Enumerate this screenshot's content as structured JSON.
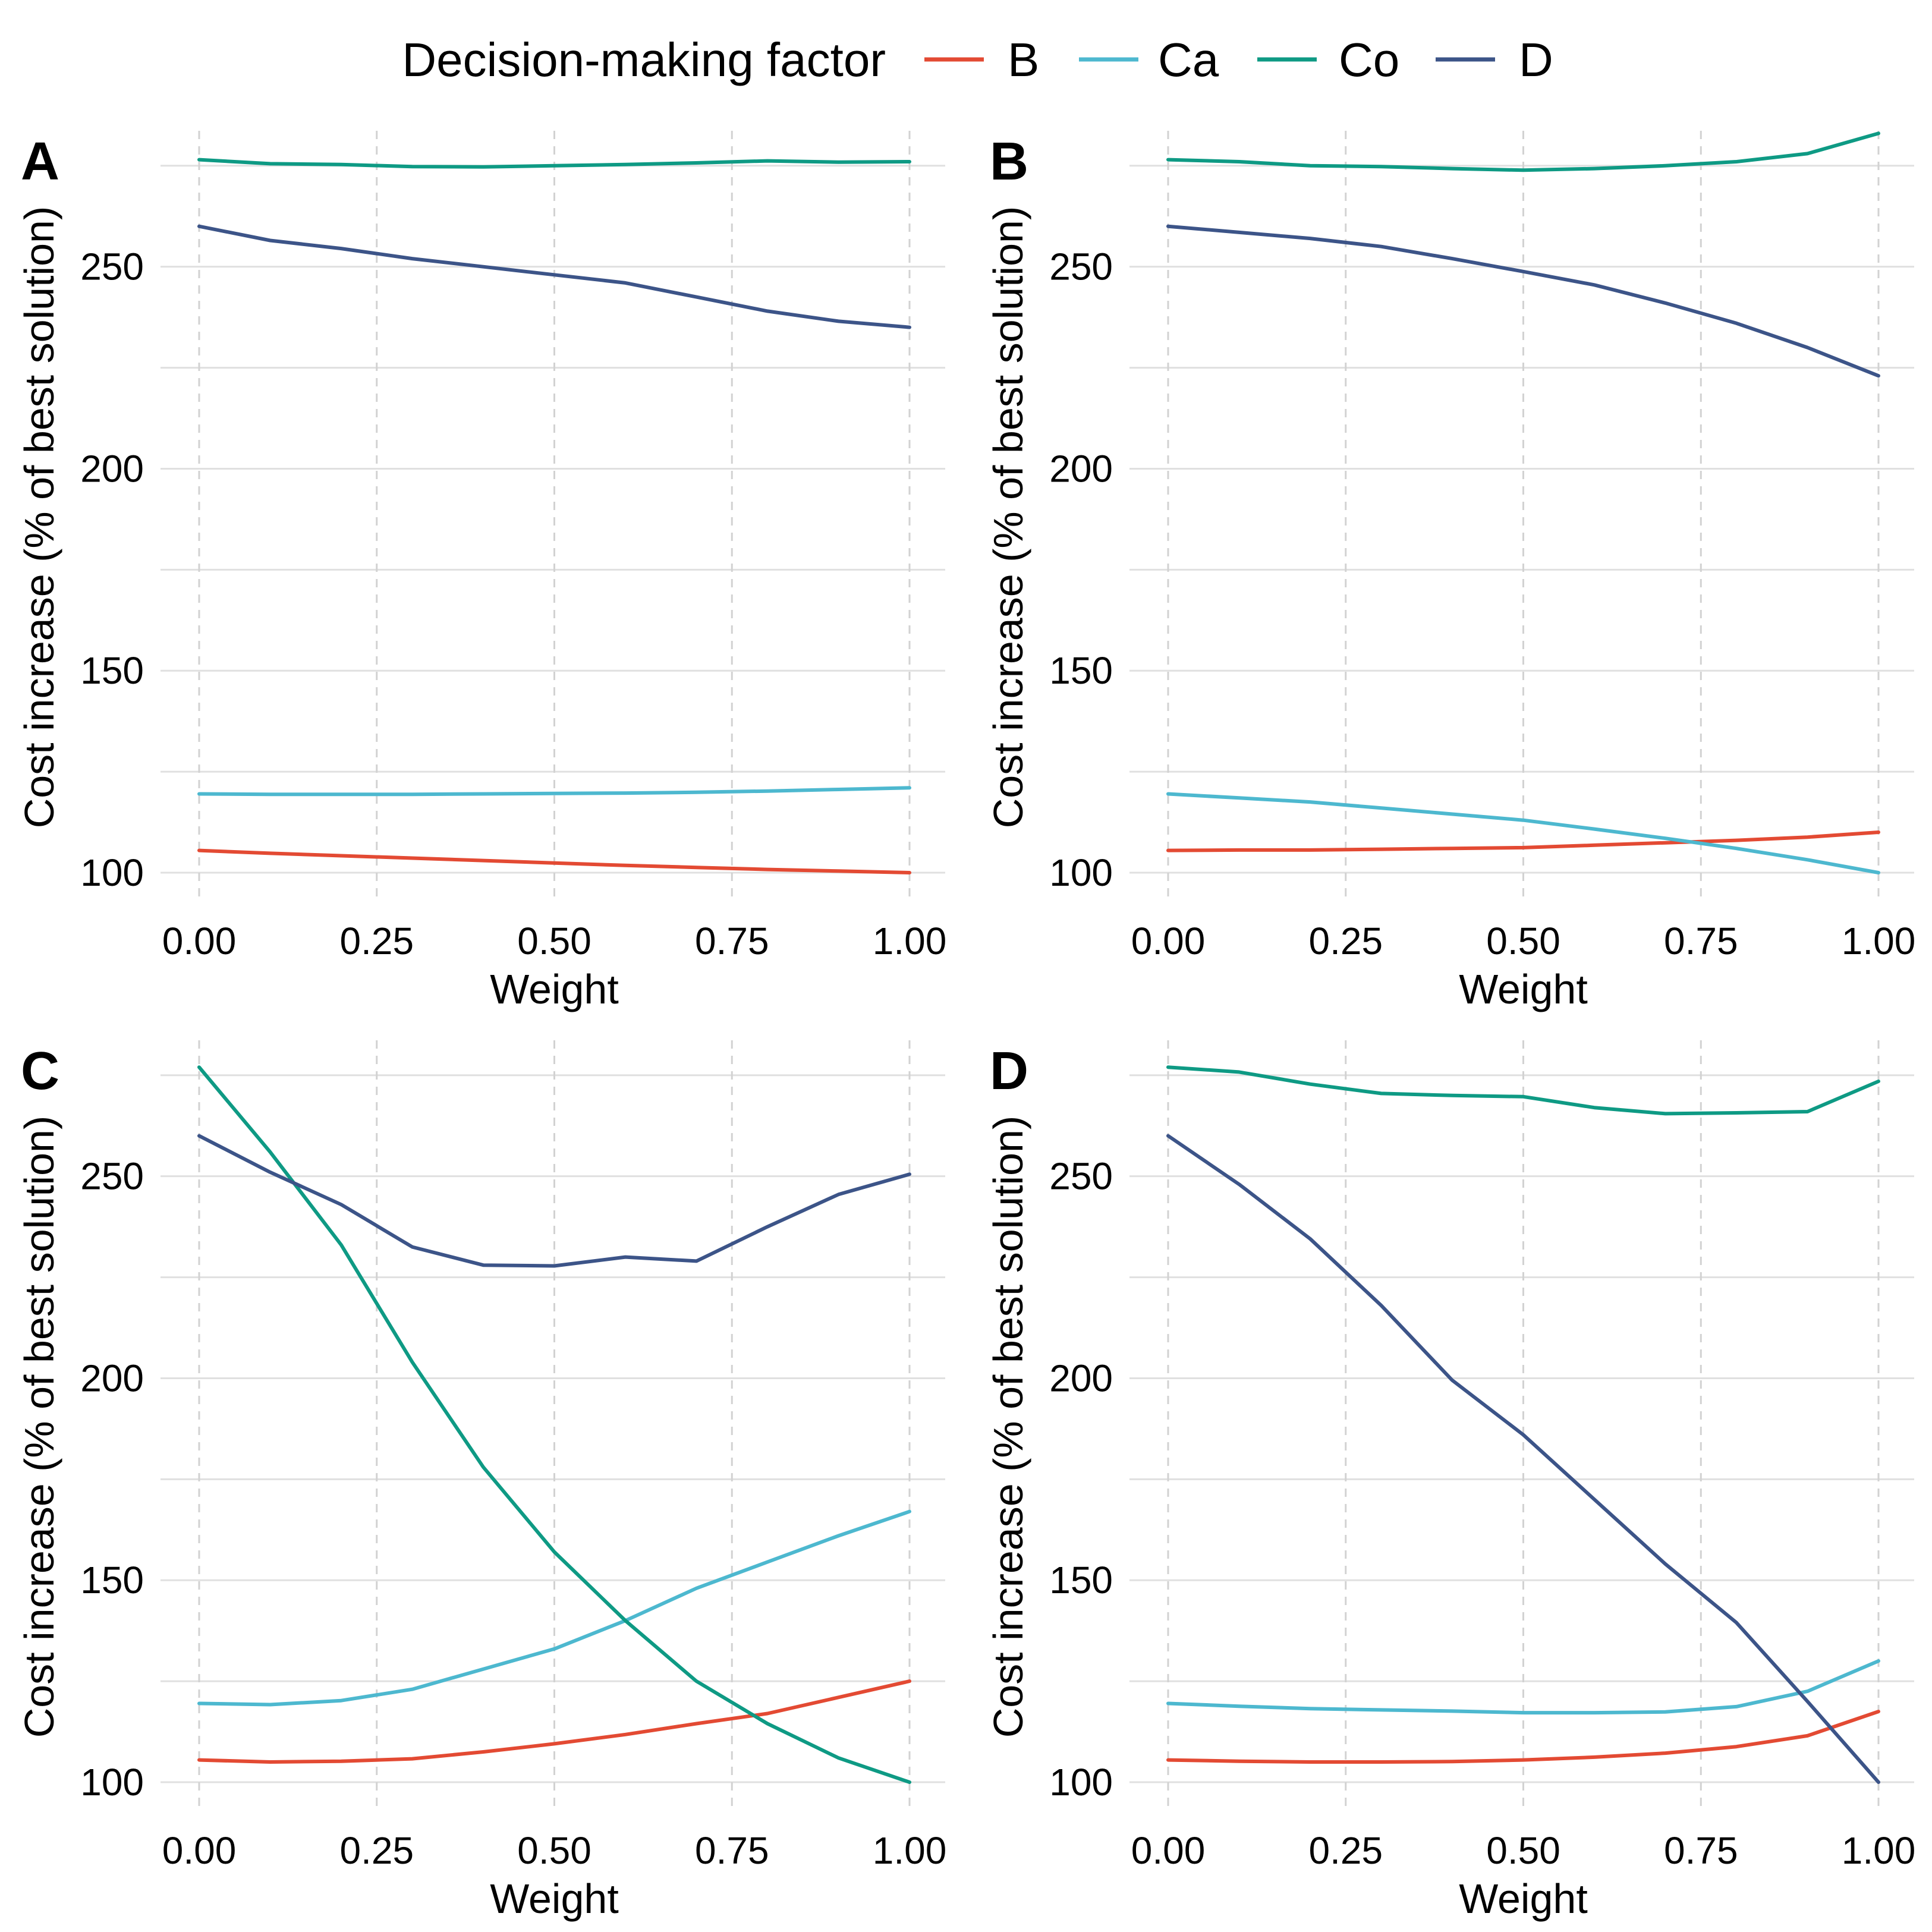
{
  "legend": {
    "title": "Decision-making factor",
    "entries": [
      {
        "name": "B",
        "color": "#e34a33"
      },
      {
        "name": "Ca",
        "color": "#4db8cf"
      },
      {
        "name": "Co",
        "color": "#0e9a84"
      },
      {
        "name": "D",
        "color": "#3c5488"
      }
    ]
  },
  "chart_data": [
    {
      "type": "line",
      "panel_label": "A",
      "xlabel": "Weight",
      "ylabel": "Cost increase (% of best solution)",
      "xlim": [
        0,
        1
      ],
      "ylim": [
        100,
        276
      ],
      "x": [
        0,
        0.1,
        0.2,
        0.3,
        0.4,
        0.5,
        0.6,
        0.7,
        0.8,
        0.9,
        1.0
      ],
      "xticks": [
        "0.00",
        "0.25",
        "0.50",
        "0.75",
        "1.00"
      ],
      "yticks": [
        "100",
        "150",
        "200",
        "250"
      ],
      "series": [
        {
          "name": "B",
          "color": "#e34a33",
          "values": [
            105.5,
            104.8,
            104.2,
            103.6,
            103.0,
            102.4,
            101.8,
            101.3,
            100.8,
            100.4,
            100.0
          ]
        },
        {
          "name": "Ca",
          "color": "#4db8cf",
          "values": [
            119.5,
            119.4,
            119.4,
            119.4,
            119.5,
            119.6,
            119.7,
            119.9,
            120.2,
            120.6,
            121.0
          ]
        },
        {
          "name": "Co",
          "color": "#0e9a84",
          "values": [
            276.5,
            275.5,
            275.3,
            274.8,
            274.7,
            275.0,
            275.3,
            275.7,
            276.2,
            275.9,
            276.0
          ]
        },
        {
          "name": "D",
          "color": "#3c5488",
          "values": [
            260.0,
            256.5,
            254.5,
            252.0,
            250.0,
            248.0,
            246.0,
            242.5,
            239.0,
            236.5,
            235.0
          ]
        }
      ]
    },
    {
      "type": "line",
      "panel_label": "B",
      "xlabel": "Weight",
      "ylabel": "Cost increase (% of best solution)",
      "xlim": [
        0,
        1
      ],
      "ylim": [
        100,
        276
      ],
      "x": [
        0,
        0.1,
        0.2,
        0.3,
        0.4,
        0.5,
        0.6,
        0.7,
        0.8,
        0.9,
        1.0
      ],
      "xticks": [
        "0.00",
        "0.25",
        "0.50",
        "0.75",
        "1.00"
      ],
      "yticks": [
        "100",
        "150",
        "200",
        "250"
      ],
      "series": [
        {
          "name": "B",
          "color": "#e34a33",
          "values": [
            105.5,
            105.6,
            105.6,
            105.8,
            106.0,
            106.2,
            106.8,
            107.4,
            108.0,
            108.8,
            110.0
          ]
        },
        {
          "name": "Ca",
          "color": "#4db8cf",
          "values": [
            119.5,
            118.5,
            117.5,
            116.0,
            114.5,
            113.0,
            110.8,
            108.5,
            106.0,
            103.2,
            100.0
          ]
        },
        {
          "name": "Co",
          "color": "#0e9a84",
          "values": [
            276.5,
            276.0,
            275.0,
            274.8,
            274.3,
            273.9,
            274.3,
            275.0,
            276.0,
            278.0,
            283.0
          ]
        },
        {
          "name": "D",
          "color": "#3c5488",
          "values": [
            260.0,
            258.5,
            257.0,
            255.0,
            252.0,
            248.8,
            245.5,
            241.0,
            236.0,
            230.0,
            223.0
          ]
        }
      ]
    },
    {
      "type": "line",
      "panel_label": "C",
      "xlabel": "Weight",
      "ylabel": "Cost increase (% of best solution)",
      "xlim": [
        0,
        1
      ],
      "ylim": [
        100,
        276
      ],
      "x": [
        0,
        0.1,
        0.2,
        0.3,
        0.4,
        0.5,
        0.6,
        0.7,
        0.8,
        0.9,
        1.0
      ],
      "xticks": [
        "0.00",
        "0.25",
        "0.50",
        "0.75",
        "1.00"
      ],
      "yticks": [
        "100",
        "150",
        "200",
        "250"
      ],
      "series": [
        {
          "name": "B",
          "color": "#e34a33",
          "values": [
            105.5,
            105.0,
            105.2,
            105.8,
            107.5,
            109.5,
            111.8,
            114.5,
            117.0,
            121.0,
            125.0
          ]
        },
        {
          "name": "Ca",
          "color": "#4db8cf",
          "values": [
            119.5,
            119.2,
            120.2,
            123.0,
            128.0,
            133.0,
            140.0,
            148.0,
            154.5,
            161.0,
            167.0
          ]
        },
        {
          "name": "Co",
          "color": "#0e9a84",
          "values": [
            277.0,
            256.0,
            233.0,
            204.0,
            178.0,
            157.0,
            140.0,
            125.0,
            114.5,
            106.0,
            100.0
          ]
        },
        {
          "name": "D",
          "color": "#3c5488",
          "values": [
            260.0,
            251.0,
            243.0,
            232.5,
            228.0,
            227.8,
            230.0,
            229.0,
            237.5,
            245.5,
            250.5
          ]
        }
      ]
    },
    {
      "type": "line",
      "panel_label": "D",
      "xlabel": "Weight",
      "ylabel": "Cost increase (% of best solution)",
      "xlim": [
        0,
        1
      ],
      "ylim": [
        100,
        276
      ],
      "x": [
        0,
        0.1,
        0.2,
        0.3,
        0.4,
        0.5,
        0.6,
        0.7,
        0.8,
        0.9,
        1.0
      ],
      "xticks": [
        "0.00",
        "0.25",
        "0.50",
        "0.75",
        "1.00"
      ],
      "yticks": [
        "100",
        "150",
        "200",
        "250"
      ],
      "series": [
        {
          "name": "B",
          "color": "#e34a33",
          "values": [
            105.5,
            105.2,
            105.0,
            105.0,
            105.1,
            105.5,
            106.2,
            107.2,
            108.8,
            111.5,
            117.5
          ]
        },
        {
          "name": "Ca",
          "color": "#4db8cf",
          "values": [
            119.5,
            118.8,
            118.2,
            117.9,
            117.6,
            117.2,
            117.2,
            117.4,
            118.7,
            122.5,
            130.0
          ]
        },
        {
          "name": "Co",
          "color": "#0e9a84",
          "values": [
            277.0,
            275.8,
            272.8,
            270.5,
            270.0,
            269.7,
            267.0,
            265.5,
            265.7,
            266.0,
            273.5
          ]
        },
        {
          "name": "D",
          "color": "#3c5488",
          "values": [
            260.0,
            248.0,
            234.5,
            218.0,
            199.5,
            186.0,
            170.0,
            154.0,
            139.5,
            120.0,
            100.0
          ]
        }
      ]
    }
  ]
}
